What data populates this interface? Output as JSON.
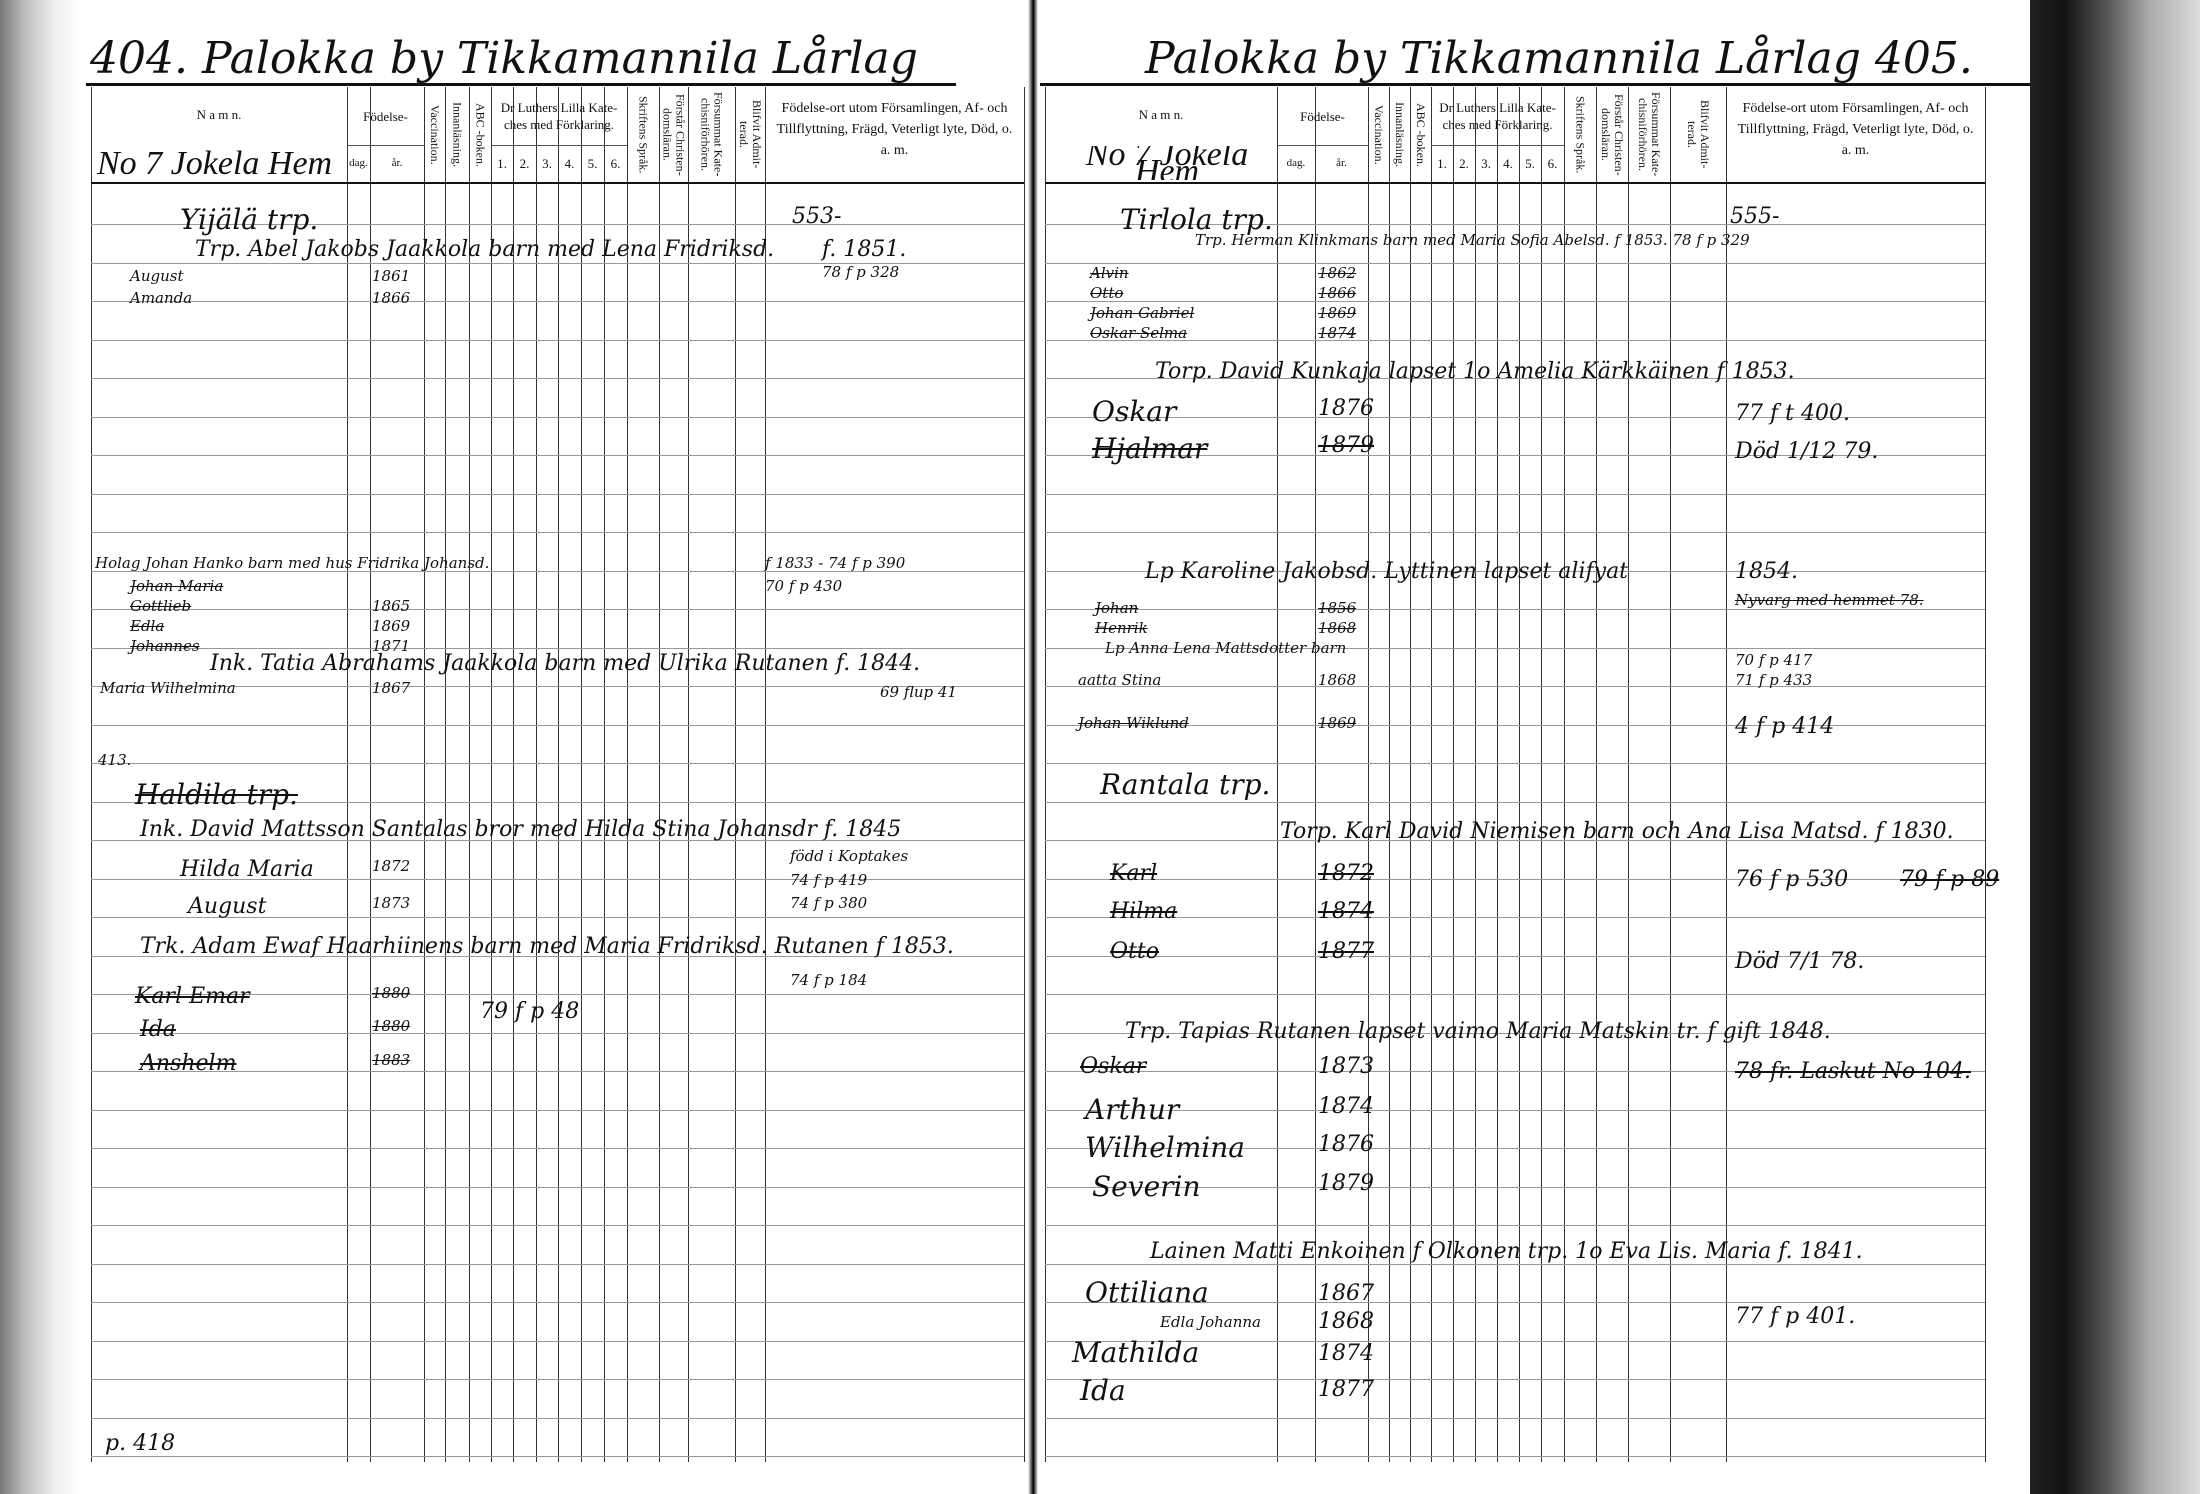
{
  "left_page": {
    "title": "404. Palokka by Tikkamannila Lårlag",
    "house": "No 7 Jokela Hem",
    "entries": [
      "Yijälä trp.",
      "553-",
      "Trp. Abel Jakobs Jaakkola barn med Lena Fridriksd.",
      "f. 1851.",
      "78 f p 328",
      "August",
      "Amanda",
      "1861",
      "1866",
      "Holag Johan Hanko barn med hus Fridrika Johansd.",
      "f 1833 - 74 f p 390",
      "70 f p 430",
      "Johan Maria",
      "Gottlieb",
      "Edla",
      "Johannes",
      "1865",
      "1869",
      "1871",
      "Ink. Tatia Abrahams Jaakkola barn med Ulrika Rutanen f. 1844.",
      "69 flup 41",
      "Maria Wilhelmina",
      "1867",
      "413.",
      "Haldila trp.",
      "Ink. David Mattsson Santalas bror med Hilda Stina Johansdr f. 1845",
      "född i Koptakes",
      "74 f p 419",
      "74 f p 380",
      "Hilda Maria",
      "1872",
      "August",
      "1873",
      "Trk. Adam Ewaf Haarhiinens barn med Maria Fridriksd. Rutanen f 1853.",
      "74 f p 184",
      "Karl Emar",
      "1880",
      "Ida",
      "1880",
      "Anshelm",
      "1883",
      "79 f p 48",
      "p. 418"
    ]
  },
  "right_page": {
    "title": "Palokka by Tikkamannila Lårlag 405.",
    "house": "No 7 Jokela Hem",
    "entries": [
      "Tirlola trp.",
      "555-",
      "Trp. Herman Klinkmans barn med Maria Sofia Abelsd. f 1853. 78 f p 329",
      "Alvin",
      "Otto",
      "Johan Gabriel",
      "Oskar Selma",
      "1862",
      "1866",
      "1869",
      "1874",
      "Torp. David Kunkaja lapset 1o Amelia Kärkkäinen f 1853.",
      "Oskar",
      "1876",
      "77 f t 400.",
      "Hjalmar",
      "1879",
      "Död 1/12 79.",
      "Lp Karoline Jakobsd. Lyttinen lapset alifyat",
      "1854.",
      "Nyvarg med hemmet 78.",
      "Johan",
      "Henrik",
      "1856",
      "1868",
      "Lp Anna Lena Mattsdotter barn",
      "aatta Stina",
      "1868",
      "70 f p 417",
      "71 f p 433",
      "Johan Wiklund",
      "1869",
      "4 f p 414",
      "Rantala trp.",
      "Torp. Karl David Niemisen barn och Ana Lisa Matsd. f 1830.",
      "Karl",
      "1872",
      "Hilma",
      "1874",
      "Otto",
      "1877",
      "76 f p 530",
      "79 f p 89",
      "Död 7/1 78.",
      "Trp. Tapias Rutanen lapset vaimo Maria Matskin tr. f gift 1848.",
      "Oskar",
      "1873",
      "Arthur",
      "1874",
      "Wilhelmina",
      "1876",
      "Severin",
      "1879",
      "78 fr. Laskut No 104.",
      "Lainen Matti Enkoinen f Olkonen trp. 1o Eva Lis. Maria f. 1841.",
      "Ottiliana",
      "1867",
      "Edla Johanna",
      "1868",
      "Mathilda",
      "1874",
      "Ida",
      "1877",
      "77 f p 401."
    ]
  },
  "header": {
    "namn": "N a m n.",
    "fodelse": "Födelse-",
    "dag": "dag.",
    "ar": "år.",
    "vaccination": "Vaccination.",
    "innanlasning": "Innanläsning.",
    "abc": "ABC -boken.",
    "katekes": "Dr Luthers Lilla Kate-ches med Förklaring.",
    "katekes_cols": [
      "1.",
      "2.",
      "3.",
      "4.",
      "5.",
      "6."
    ],
    "skriftens": "Skriftens Språk.",
    "forstar": "Förstår Christen-domsläran.",
    "forsummat": "Försummat Kate-chisniförhören.",
    "blifvit": "Blifvit Admit-terad.",
    "fodelseort": "Födelse-ort utom Församlingen, Af- och Tillflyttning, Frägd, Veterligt lyte, Död, o. a. m."
  }
}
